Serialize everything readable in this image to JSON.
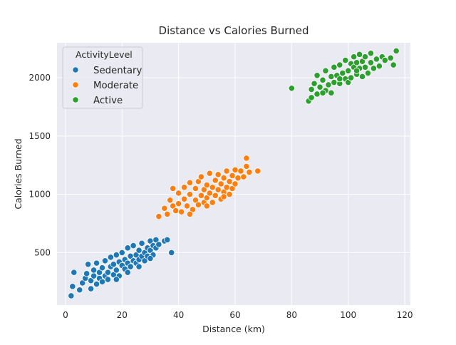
{
  "chart_data": {
    "type": "scatter",
    "title": "Distance vs Calories Burned",
    "xlabel": "Distance (km)",
    "ylabel": "Calories Burned",
    "xlim": [
      -3,
      122
    ],
    "ylim": [
      50,
      2300
    ],
    "xticks": [
      0,
      20,
      40,
      60,
      80,
      100,
      120
    ],
    "yticks": [
      500,
      1000,
      1500,
      2000
    ],
    "grid": true,
    "legend": {
      "title": "ActivityLevel",
      "location": "upper-left"
    },
    "colors": {
      "Sedentary": "#1f77b4",
      "Moderate": "#ff7f0e",
      "Active": "#2ca02c",
      "plot_background": "#eaeaf2",
      "grid": "#ffffff"
    },
    "series": [
      {
        "name": "Sedentary",
        "points": [
          [
            2,
            130
          ],
          [
            2.5,
            210
          ],
          [
            3,
            330
          ],
          [
            5,
            180
          ],
          [
            6,
            240
          ],
          [
            7,
            280
          ],
          [
            7.5,
            320
          ],
          [
            8,
            400
          ],
          [
            9,
            190
          ],
          [
            9,
            260
          ],
          [
            10,
            300
          ],
          [
            10,
            350
          ],
          [
            11,
            230
          ],
          [
            11,
            410
          ],
          [
            12,
            280
          ],
          [
            12,
            330
          ],
          [
            13,
            370
          ],
          [
            13,
            250
          ],
          [
            14,
            300
          ],
          [
            14,
            430
          ],
          [
            15,
            330
          ],
          [
            15,
            270
          ],
          [
            16,
            380
          ],
          [
            16,
            460
          ],
          [
            17,
            310
          ],
          [
            17,
            400
          ],
          [
            18,
            350
          ],
          [
            18,
            480
          ],
          [
            19,
            420
          ],
          [
            19,
            300
          ],
          [
            20,
            390
          ],
          [
            20,
            500
          ],
          [
            21,
            440
          ],
          [
            21,
            360
          ],
          [
            22,
            410
          ],
          [
            22,
            540
          ],
          [
            23,
            470
          ],
          [
            23,
            380
          ],
          [
            24,
            430
          ],
          [
            24,
            560
          ],
          [
            25,
            480
          ],
          [
            25,
            410
          ],
          [
            26,
            520
          ],
          [
            26,
            440
          ],
          [
            27,
            470
          ],
          [
            27,
            580
          ],
          [
            28,
            500
          ],
          [
            28,
            430
          ],
          [
            29,
            540
          ],
          [
            29,
            470
          ],
          [
            30,
            600
          ],
          [
            30,
            520
          ],
          [
            31,
            480
          ],
          [
            31,
            560
          ],
          [
            32,
            540
          ],
          [
            32,
            610
          ],
          [
            33,
            570
          ],
          [
            35,
            600
          ],
          [
            36,
            610
          ],
          [
            37.5,
            500
          ],
          [
            18,
            270
          ],
          [
            22,
            330
          ],
          [
            26,
            380
          ],
          [
            30,
            450
          ]
        ]
      },
      {
        "name": "Moderate",
        "points": [
          [
            33,
            810
          ],
          [
            35,
            880
          ],
          [
            36,
            830
          ],
          [
            37,
            950
          ],
          [
            38,
            1050
          ],
          [
            38,
            900
          ],
          [
            39,
            860
          ],
          [
            40,
            920
          ],
          [
            40,
            1010
          ],
          [
            41,
            850
          ],
          [
            42,
            960
          ],
          [
            42,
            1060
          ],
          [
            43,
            900
          ],
          [
            44,
            1000
          ],
          [
            44,
            1100
          ],
          [
            45,
            870
          ],
          [
            46,
            950
          ],
          [
            46,
            1050
          ],
          [
            47,
            1110
          ],
          [
            47,
            910
          ],
          [
            48,
            990
          ],
          [
            48,
            1150
          ],
          [
            49,
            1040
          ],
          [
            49,
            930
          ],
          [
            50,
            1080
          ],
          [
            50,
            970
          ],
          [
            51,
            1180
          ],
          [
            51,
            1010
          ],
          [
            52,
            1060
          ],
          [
            52,
            930
          ],
          [
            53,
            1120
          ],
          [
            53,
            990
          ],
          [
            54,
            1040
          ],
          [
            54,
            1170
          ],
          [
            55,
            1090
          ],
          [
            55,
            960
          ],
          [
            56,
            1140
          ],
          [
            56,
            1020
          ],
          [
            57,
            1200
          ],
          [
            57,
            1060
          ],
          [
            58,
            1110
          ],
          [
            58,
            1000
          ],
          [
            59,
            1160
          ],
          [
            59,
            1050
          ],
          [
            60,
            1210
          ],
          [
            60,
            1090
          ],
          [
            61,
            1140
          ],
          [
            62,
            1200
          ],
          [
            63,
            1150
          ],
          [
            64,
            1310
          ],
          [
            64,
            1240
          ],
          [
            65,
            1190
          ],
          [
            68,
            1200
          ],
          [
            44,
            830
          ],
          [
            50,
            900
          ],
          [
            56,
            980
          ]
        ]
      },
      {
        "name": "Active",
        "points": [
          [
            80,
            1910
          ],
          [
            86,
            1800
          ],
          [
            87,
            1830
          ],
          [
            87,
            1900
          ],
          [
            88,
            1950
          ],
          [
            89,
            1860
          ],
          [
            89,
            2020
          ],
          [
            90,
            1920
          ],
          [
            91,
            1980
          ],
          [
            92,
            1890
          ],
          [
            92,
            2060
          ],
          [
            93,
            1940
          ],
          [
            94,
            2010
          ],
          [
            94,
            1870
          ],
          [
            95,
            1960
          ],
          [
            95,
            2090
          ],
          [
            96,
            2020
          ],
          [
            97,
            1950
          ],
          [
            97,
            2110
          ],
          [
            98,
            2040
          ],
          [
            99,
            1990
          ],
          [
            99,
            2150
          ],
          [
            100,
            2060
          ],
          [
            100,
            1960
          ],
          [
            101,
            2120
          ],
          [
            101,
            2000
          ],
          [
            102,
            2090
          ],
          [
            102,
            2180
          ],
          [
            103,
            2030
          ],
          [
            103,
            2130
          ],
          [
            104,
            2080
          ],
          [
            104,
            2200
          ],
          [
            105,
            2010
          ],
          [
            105,
            2140
          ],
          [
            106,
            2090
          ],
          [
            106,
            2180
          ],
          [
            107,
            2040
          ],
          [
            108,
            2130
          ],
          [
            108,
            2210
          ],
          [
            109,
            2080
          ],
          [
            110,
            2160
          ],
          [
            111,
            2100
          ],
          [
            112,
            2180
          ],
          [
            113,
            2150
          ],
          [
            115,
            2170
          ],
          [
            116,
            2110
          ],
          [
            117,
            2230
          ],
          [
            91,
            1870
          ],
          [
            97,
            1990
          ],
          [
            103,
            2060
          ]
        ]
      }
    ]
  }
}
